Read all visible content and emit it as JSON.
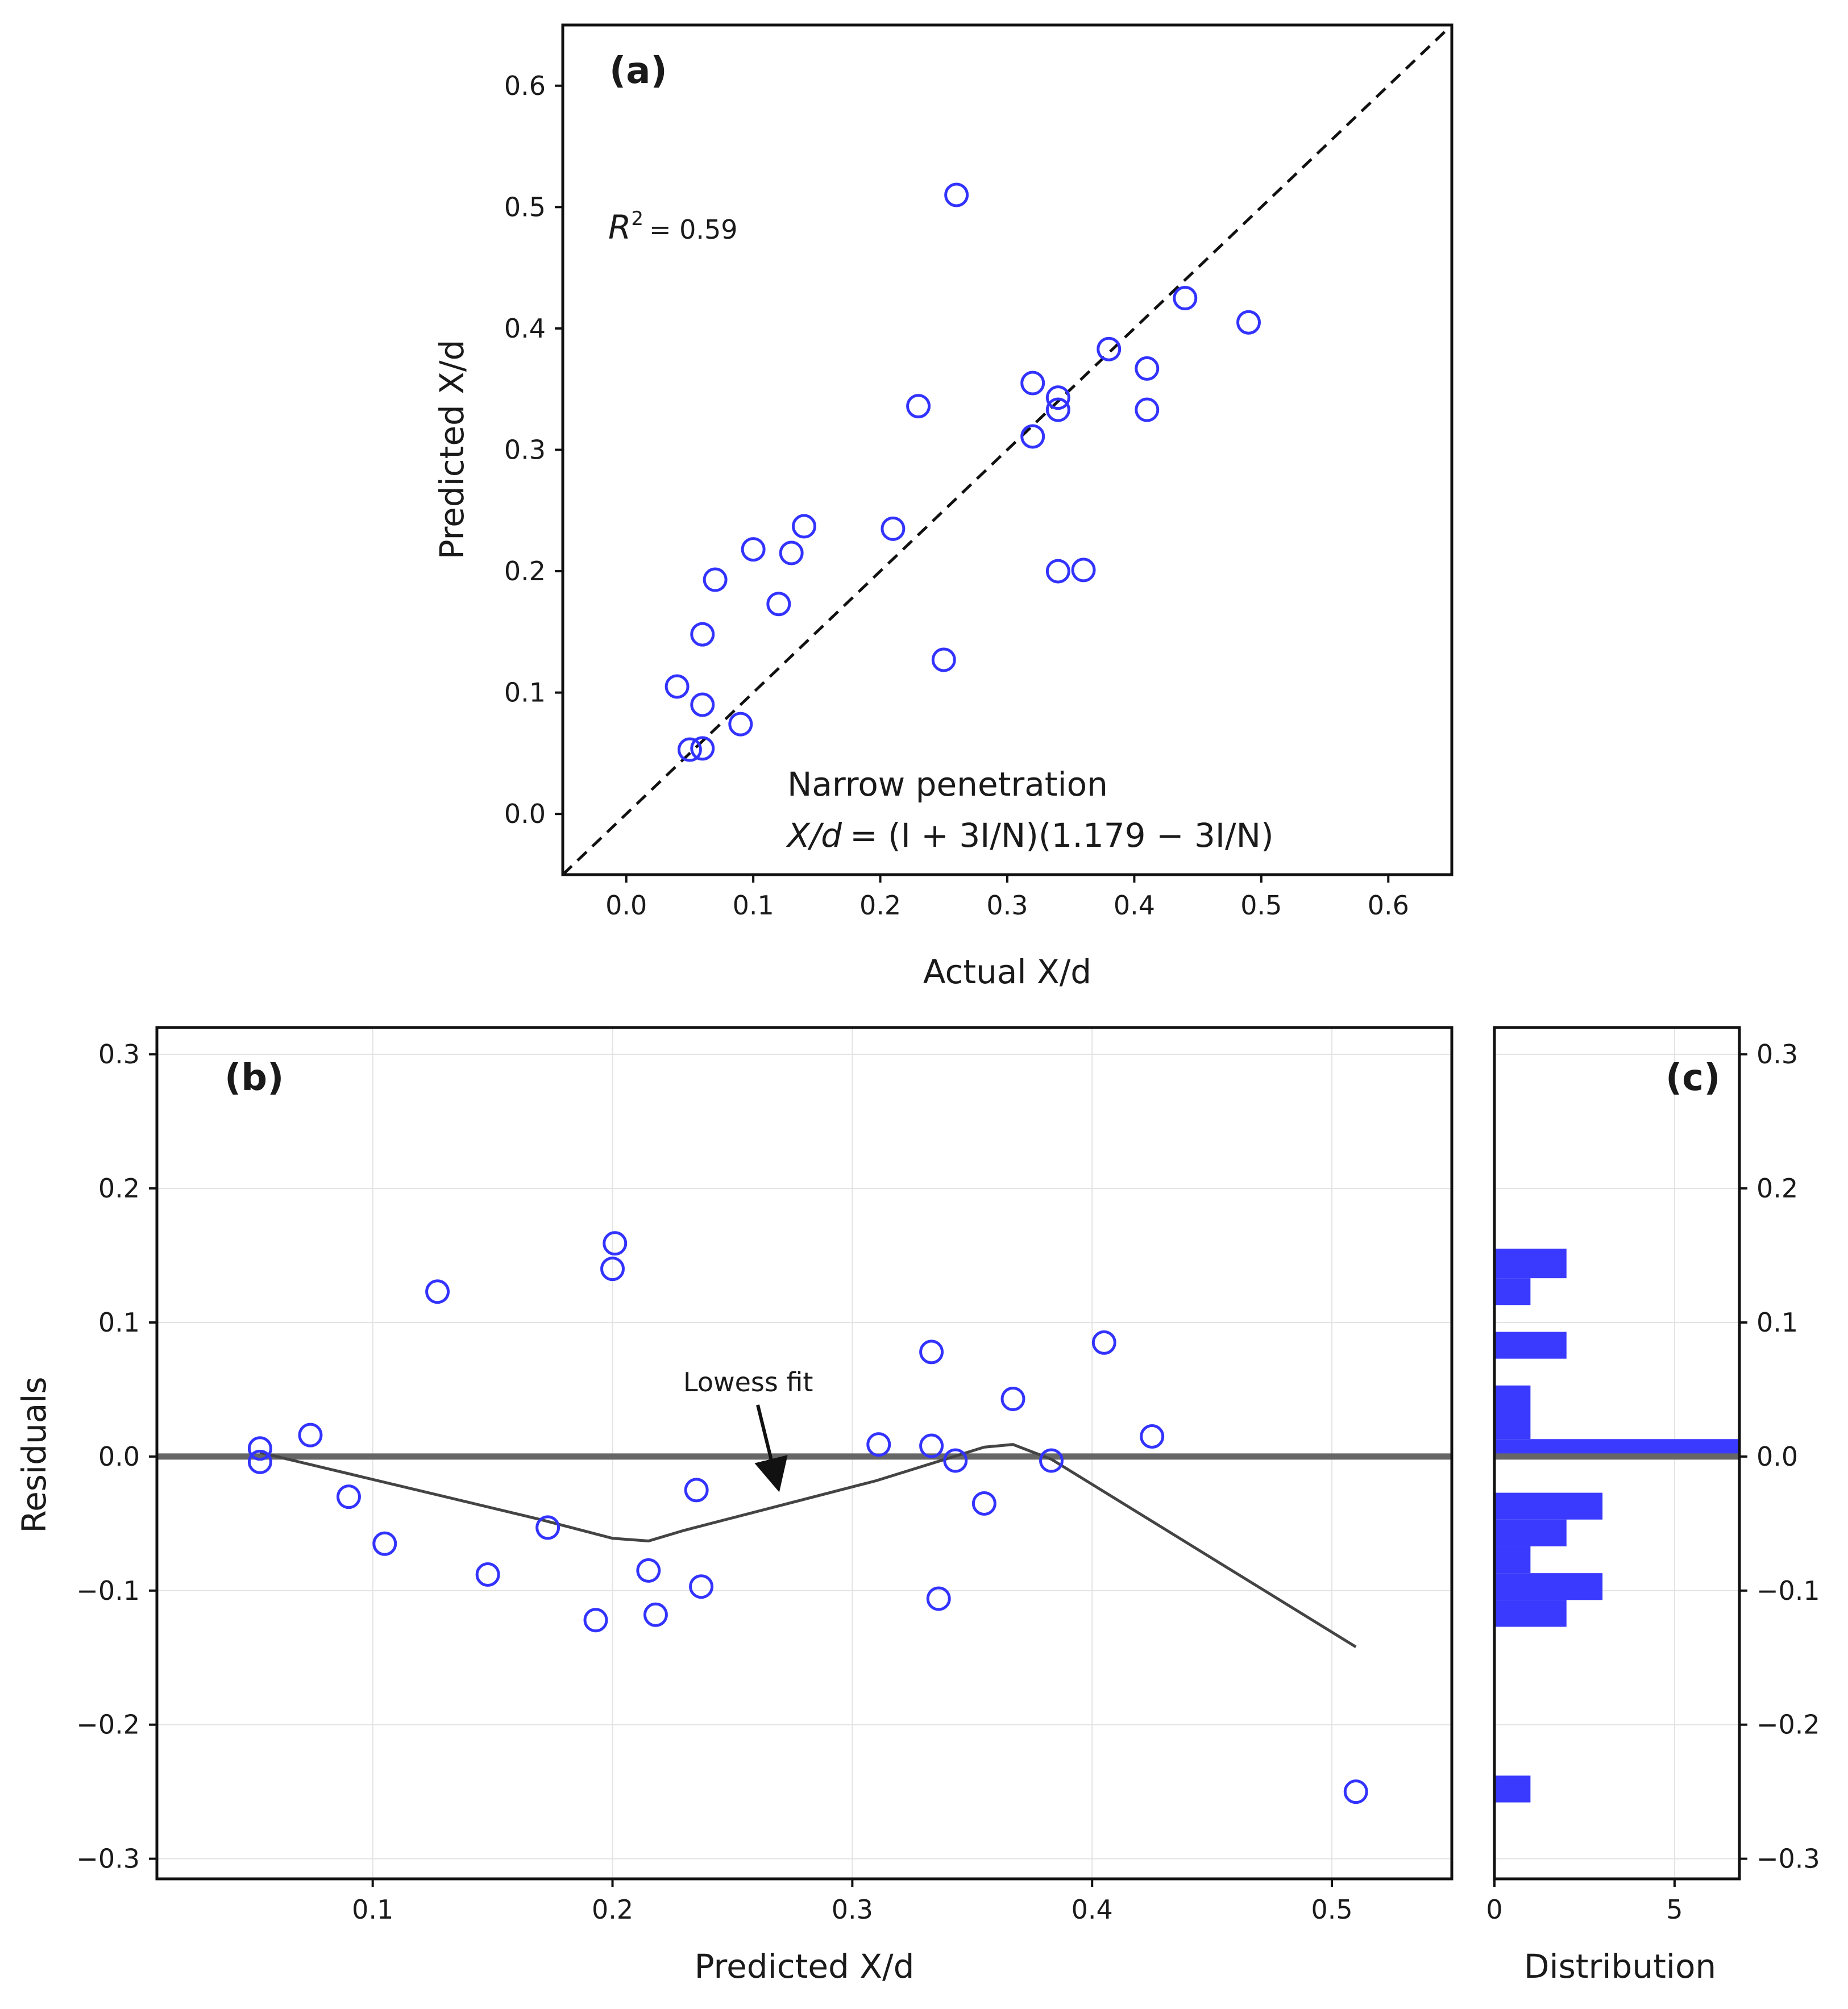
{
  "chart_data": [
    {
      "panel": "(a)",
      "type": "scatter",
      "xlabel": "Actual X/d",
      "ylabel": "Predicted X/d",
      "xlim": [
        -0.05,
        0.65
      ],
      "ylim": [
        -0.05,
        0.65
      ],
      "xticks": [
        0.0,
        0.1,
        0.2,
        0.3,
        0.4,
        0.5,
        0.6
      ],
      "yticks": [
        0.0,
        0.1,
        0.2,
        0.3,
        0.4,
        0.5,
        0.6
      ],
      "tick_labels": [
        "0.0",
        "0.1",
        "0.2",
        "0.3",
        "0.4",
        "0.5",
        "0.6"
      ],
      "grid": false,
      "r2_label": "R",
      "r2_sup": "2",
      "r2_value": "= 0.59",
      "annotation_title": "Narrow penetration",
      "formula_lhs": "X/d",
      "formula_rhs": "= (I + 3I/N)(1.179 − 3I/N)",
      "reference_line": "y = x (dashed)",
      "marker_color": "#3333ff",
      "points": [
        {
          "x": 0.05,
          "y": 0.053
        },
        {
          "x": 0.06,
          "y": 0.054
        },
        {
          "x": 0.09,
          "y": 0.074
        },
        {
          "x": 0.06,
          "y": 0.09
        },
        {
          "x": 0.04,
          "y": 0.105
        },
        {
          "x": 0.06,
          "y": 0.148
        },
        {
          "x": 0.07,
          "y": 0.193
        },
        {
          "x": 0.1,
          "y": 0.218
        },
        {
          "x": 0.12,
          "y": 0.173
        },
        {
          "x": 0.13,
          "y": 0.215
        },
        {
          "x": 0.14,
          "y": 0.237
        },
        {
          "x": 0.21,
          "y": 0.235
        },
        {
          "x": 0.23,
          "y": 0.336
        },
        {
          "x": 0.25,
          "y": 0.127
        },
        {
          "x": 0.26,
          "y": 0.51
        },
        {
          "x": 0.32,
          "y": 0.355
        },
        {
          "x": 0.32,
          "y": 0.311
        },
        {
          "x": 0.34,
          "y": 0.343
        },
        {
          "x": 0.34,
          "y": 0.333
        },
        {
          "x": 0.34,
          "y": 0.2
        },
        {
          "x": 0.36,
          "y": 0.201
        },
        {
          "x": 0.38,
          "y": 0.383
        },
        {
          "x": 0.41,
          "y": 0.367
        },
        {
          "x": 0.41,
          "y": 0.333
        },
        {
          "x": 0.44,
          "y": 0.425
        },
        {
          "x": 0.49,
          "y": 0.405
        }
      ]
    },
    {
      "panel": "(b)",
      "type": "scatter",
      "xlabel": "Predicted X/d",
      "ylabel": "Residuals",
      "xlim": [
        0.01,
        0.55
      ],
      "ylim": [
        -0.315,
        0.32
      ],
      "xticks": [
        0.1,
        0.2,
        0.3,
        0.4,
        0.5
      ],
      "xtick_labels": [
        "0.1",
        "0.2",
        "0.3",
        "0.4",
        "0.5"
      ],
      "yticks": [
        -0.3,
        -0.2,
        -0.1,
        0.0,
        0.1,
        0.2,
        0.3
      ],
      "ytick_labels": [
        "−0.3",
        "−0.2",
        "−0.1",
        "0.0",
        "0.1",
        "0.2",
        "0.3"
      ],
      "grid": true,
      "zero_line": 0.0,
      "annotation": "Lowess fit",
      "marker_color": "#3333ff",
      "points": [
        {
          "x": 0.053,
          "y": 0.006
        },
        {
          "x": 0.053,
          "y": -0.004
        },
        {
          "x": 0.074,
          "y": 0.016
        },
        {
          "x": 0.09,
          "y": -0.03
        },
        {
          "x": 0.105,
          "y": -0.065
        },
        {
          "x": 0.127,
          "y": 0.123
        },
        {
          "x": 0.148,
          "y": -0.088
        },
        {
          "x": 0.173,
          "y": -0.053
        },
        {
          "x": 0.193,
          "y": -0.122
        },
        {
          "x": 0.2,
          "y": 0.14
        },
        {
          "x": 0.201,
          "y": 0.159
        },
        {
          "x": 0.215,
          "y": -0.085
        },
        {
          "x": 0.218,
          "y": -0.118
        },
        {
          "x": 0.235,
          "y": -0.025
        },
        {
          "x": 0.237,
          "y": -0.097
        },
        {
          "x": 0.311,
          "y": 0.009
        },
        {
          "x": 0.333,
          "y": 0.078
        },
        {
          "x": 0.333,
          "y": 0.008
        },
        {
          "x": 0.336,
          "y": -0.106
        },
        {
          "x": 0.343,
          "y": -0.003
        },
        {
          "x": 0.355,
          "y": -0.035
        },
        {
          "x": 0.367,
          "y": 0.043
        },
        {
          "x": 0.383,
          "y": -0.003
        },
        {
          "x": 0.405,
          "y": 0.085
        },
        {
          "x": 0.425,
          "y": 0.015
        },
        {
          "x": 0.51,
          "y": -0.25
        }
      ],
      "lowess": [
        {
          "x": 0.053,
          "y": 0.003
        },
        {
          "x": 0.17,
          "y": -0.047
        },
        {
          "x": 0.2,
          "y": -0.061
        },
        {
          "x": 0.215,
          "y": -0.063
        },
        {
          "x": 0.23,
          "y": -0.055
        },
        {
          "x": 0.31,
          "y": -0.018
        },
        {
          "x": 0.355,
          "y": 0.007
        },
        {
          "x": 0.367,
          "y": 0.009
        },
        {
          "x": 0.383,
          "y": -0.002
        },
        {
          "x": 0.51,
          "y": -0.142
        }
      ]
    },
    {
      "panel": "(c)",
      "type": "bar",
      "orientation": "horizontal",
      "xlabel": "Distribution",
      "xlim": [
        0,
        6.8
      ],
      "xticks": [
        0,
        5
      ],
      "xtick_labels": [
        "0",
        "5"
      ],
      "ylim": [
        -0.315,
        0.32
      ],
      "yticks": [
        -0.3,
        -0.2,
        -0.1,
        0.0,
        0.1,
        0.2,
        0.3
      ],
      "ytick_labels": [
        "−0.3",
        "−0.2",
        "−0.1",
        "0.0",
        "0.1",
        "0.2",
        "0.3"
      ],
      "bar_color": "#3a3aff",
      "bins": [
        {
          "from": -0.258,
          "to": -0.238,
          "count": 1
        },
        {
          "from": -0.127,
          "to": -0.107,
          "count": 2
        },
        {
          "from": -0.107,
          "to": -0.087,
          "count": 3
        },
        {
          "from": -0.087,
          "to": -0.067,
          "count": 1
        },
        {
          "from": -0.067,
          "to": -0.047,
          "count": 2
        },
        {
          "from": -0.047,
          "to": -0.027,
          "count": 3
        },
        {
          "from": 0.0,
          "to": 0.013,
          "count": 7
        },
        {
          "from": 0.013,
          "to": 0.053,
          "count": 1
        },
        {
          "from": 0.073,
          "to": 0.093,
          "count": 2
        },
        {
          "from": 0.113,
          "to": 0.133,
          "count": 1
        },
        {
          "from": 0.133,
          "to": 0.155,
          "count": 2
        }
      ]
    }
  ]
}
